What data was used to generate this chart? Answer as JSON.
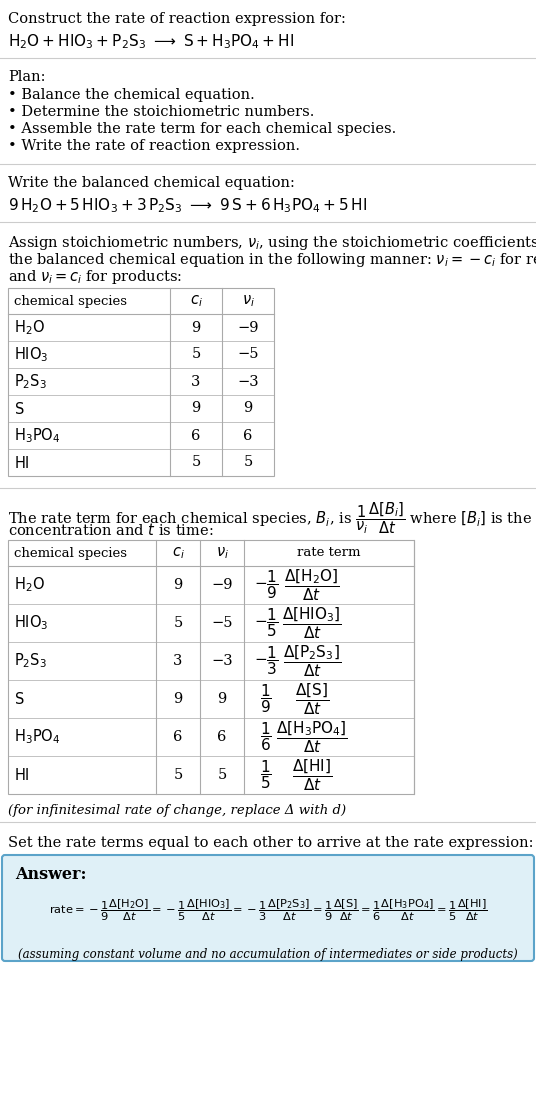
{
  "title_line1": "Construct the rate of reaction expression for:",
  "plan_header": "Plan:",
  "plan_items": [
    "• Balance the chemical equation.",
    "• Determine the stoichiometric numbers.",
    "• Assemble the rate term for each chemical species.",
    "• Write the rate of reaction expression."
  ],
  "balanced_header": "Write the balanced chemical equation:",
  "stoich_intro_line1": "Assign stoichiometric numbers, $\\nu_i$, using the stoichiometric coefficients, $c_i$, from",
  "stoich_intro_line2": "the balanced chemical equation in the following manner: $\\nu_i = -c_i$ for reactants",
  "stoich_intro_line3": "and $\\nu_i = c_i$ for products:",
  "table1_col0_header": "chemical species",
  "table1_col1_header": "$c_i$",
  "table1_col2_header": "$\\nu_i$",
  "table1_data": [
    [
      "$\\mathrm{H_2O}$",
      "9",
      "−9"
    ],
    [
      "$\\mathrm{HIO_3}$",
      "5",
      "−5"
    ],
    [
      "$\\mathrm{P_2S_3}$",
      "3",
      "−3"
    ],
    [
      "$\\mathrm{S}$",
      "9",
      "9"
    ],
    [
      "$\\mathrm{H_3PO_4}$",
      "6",
      "6"
    ],
    [
      "$\\mathrm{HI}$",
      "5",
      "5"
    ]
  ],
  "rate_intro_line1": "The rate term for each chemical species, $B_i$, is $\\dfrac{1}{\\nu_i}\\dfrac{\\Delta[B_i]}{\\Delta t}$ where $[B_i]$ is the amount",
  "rate_intro_line2": "concentration and $t$ is time:",
  "table2_col3_header": "rate term",
  "table2_data": [
    [
      "$\\mathrm{H_2O}$",
      "9",
      "−9",
      "$-\\dfrac{1}{9}$",
      "$\\dfrac{\\Delta[\\mathrm{H_2O}]}{\\Delta t}$"
    ],
    [
      "$\\mathrm{HIO_3}$",
      "5",
      "−5",
      "$-\\dfrac{1}{5}$",
      "$\\dfrac{\\Delta[\\mathrm{HIO_3}]}{\\Delta t}$"
    ],
    [
      "$\\mathrm{P_2S_3}$",
      "3",
      "−3",
      "$-\\dfrac{1}{3}$",
      "$\\dfrac{\\Delta[\\mathrm{P_2S_3}]}{\\Delta t}$"
    ],
    [
      "$\\mathrm{S}$",
      "9",
      "9",
      "$\\dfrac{1}{9}$",
      "$\\dfrac{\\Delta[\\mathrm{S}]}{\\Delta t}$"
    ],
    [
      "$\\mathrm{H_3PO_4}$",
      "6",
      "6",
      "$\\dfrac{1}{6}$",
      "$\\dfrac{\\Delta[\\mathrm{H_3PO_4}]}{\\Delta t}$"
    ],
    [
      "$\\mathrm{HI}$",
      "5",
      "5",
      "$\\dfrac{1}{5}$",
      "$\\dfrac{\\Delta[\\mathrm{HI}]}{\\Delta t}$"
    ]
  ],
  "infinitesimal_note": "(for infinitesimal rate of change, replace Δ with d)",
  "set_equal_text": "Set the rate terms equal to each other to arrive at the rate expression:",
  "answer_label": "Answer:",
  "answer_box_color": "#dff0f7",
  "answer_box_border": "#5ba3c9",
  "assuming_note": "(assuming constant volume and no accumulation of intermediates or side products)",
  "bg_color": "#ffffff",
  "table_border_color": "#aaaaaa",
  "sep_line_color": "#cccccc"
}
